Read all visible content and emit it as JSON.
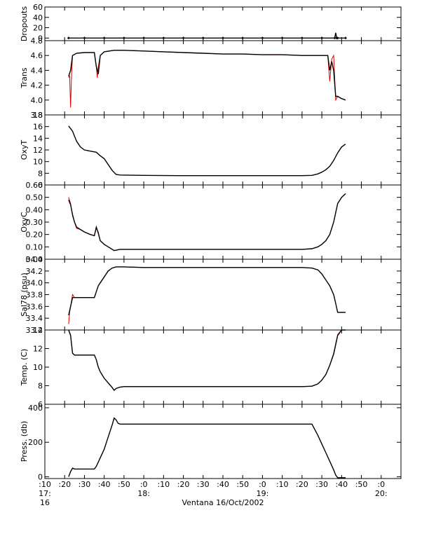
{
  "figure": {
    "xlabel": "Ventana 16/Oct/2002",
    "x_ticks": [
      {
        "label": ":10",
        "hour_label": "17:",
        "sub_label": "16"
      },
      {
        "label": ":20"
      },
      {
        "label": ":30"
      },
      {
        "label": ":40"
      },
      {
        "label": ":50"
      },
      {
        "label": ":0",
        "hour_label": "18:"
      },
      {
        "label": ":10"
      },
      {
        "label": ":20"
      },
      {
        "label": ":30"
      },
      {
        "label": ":40"
      },
      {
        "label": ":50"
      },
      {
        "label": ":0",
        "hour_label": "19:"
      },
      {
        "label": ":10"
      },
      {
        "label": ":20"
      },
      {
        "label": ":30"
      },
      {
        "label": ":40"
      },
      {
        "label": ":50"
      },
      {
        "label": ":0",
        "hour_label": "20:"
      }
    ]
  },
  "chart_data": [
    {
      "type": "line",
      "ylabel": "Dropouts",
      "ylim": [
        -5,
        60
      ],
      "yticks": [
        {
          "v": 60,
          "label": "60"
        },
        {
          "v": 40,
          "label": "40"
        },
        {
          "v": 20,
          "label": "20"
        },
        {
          "v": 0,
          "label": "0"
        }
      ],
      "series": [
        {
          "color": "#000000",
          "x": [
            22,
            30,
            40,
            50,
            60,
            70,
            80,
            90,
            100,
            110,
            120,
            130,
            140,
            150,
            156.5,
            157,
            157.5,
            158,
            162
          ],
          "y": [
            0,
            0,
            0,
            0,
            0,
            0,
            0,
            0,
            0,
            0,
            0,
            0,
            0,
            0,
            0,
            10,
            0,
            0,
            0
          ]
        }
      ]
    },
    {
      "type": "line",
      "ylabel": "Trans",
      "ylim": [
        3.8,
        4.8
      ],
      "yticks": [
        {
          "v": 4.8,
          "label": "4.8"
        },
        {
          "v": 4.6,
          "label": "4.6"
        },
        {
          "v": 4.4,
          "label": "4.4"
        },
        {
          "v": 4.2,
          "label": "4.2"
        },
        {
          "v": 4.0,
          "label": "4.0"
        },
        {
          "v": 3.8,
          "label": "3.8"
        }
      ],
      "series": [
        {
          "color": "#e00000",
          "x": [
            22,
            22.5,
            23,
            23.5,
            24,
            26,
            30,
            35,
            36,
            36.5,
            37,
            38,
            40,
            45,
            50,
            60,
            70,
            80,
            90,
            100,
            110,
            120,
            130,
            140,
            150,
            153,
            154,
            155,
            156,
            157,
            158,
            160,
            162
          ],
          "y": [
            4.3,
            4.33,
            3.9,
            4.35,
            4.6,
            4.63,
            4.64,
            4.64,
            4.45,
            4.3,
            4.45,
            4.6,
            4.65,
            4.67,
            4.67,
            4.66,
            4.65,
            4.64,
            4.63,
            4.62,
            4.62,
            4.61,
            4.61,
            4.6,
            4.6,
            4.6,
            4.25,
            4.55,
            4.6,
            4.0,
            4.05,
            4.02,
            4.0
          ]
        },
        {
          "color": "#000000",
          "x": [
            22,
            23,
            24,
            26,
            30,
            35,
            36,
            37,
            38,
            40,
            45,
            50,
            60,
            70,
            80,
            90,
            100,
            110,
            120,
            130,
            140,
            150,
            153,
            154,
            155,
            156,
            157,
            158,
            160,
            162
          ],
          "y": [
            4.32,
            4.4,
            4.6,
            4.63,
            4.64,
            4.64,
            4.45,
            4.35,
            4.6,
            4.65,
            4.67,
            4.67,
            4.66,
            4.65,
            4.64,
            4.63,
            4.62,
            4.62,
            4.61,
            4.61,
            4.6,
            4.6,
            4.6,
            4.4,
            4.52,
            4.4,
            4.05,
            4.05,
            4.02,
            4.0
          ]
        }
      ]
    },
    {
      "type": "line",
      "ylabel": "OxyT",
      "ylim": [
        6,
        18
      ],
      "yticks": [
        {
          "v": 18,
          "label": "18"
        },
        {
          "v": 16,
          "label": "16"
        },
        {
          "v": 14,
          "label": "14"
        },
        {
          "v": 12,
          "label": "12"
        },
        {
          "v": 10,
          "label": "10"
        },
        {
          "v": 8,
          "label": "8"
        },
        {
          "v": 6,
          "label": "6"
        }
      ],
      "series": [
        {
          "color": "#000000",
          "x": [
            22,
            24,
            26,
            28,
            30,
            33,
            36,
            38,
            40,
            42,
            44,
            46,
            48,
            60,
            80,
            100,
            120,
            140,
            145,
            148,
            150,
            152,
            154,
            156,
            158,
            160,
            162
          ],
          "y": [
            16.1,
            15.2,
            13.5,
            12.5,
            12.0,
            11.8,
            11.6,
            11.0,
            10.5,
            9.5,
            8.5,
            7.8,
            7.7,
            7.65,
            7.6,
            7.6,
            7.6,
            7.6,
            7.65,
            7.9,
            8.2,
            8.6,
            9.2,
            10.2,
            11.5,
            12.5,
            13.0
          ]
        }
      ]
    },
    {
      "type": "line",
      "ylabel": "OxyC",
      "ylim": [
        0.0,
        0.6
      ],
      "yticks": [
        {
          "v": 0.6,
          "label": "0.60"
        },
        {
          "v": 0.5,
          "label": "0.50"
        },
        {
          "v": 0.4,
          "label": "0.40"
        },
        {
          "v": 0.3,
          "label": "0.30"
        },
        {
          "v": 0.2,
          "label": "0.20"
        },
        {
          "v": 0.1,
          "label": "0.10"
        },
        {
          "v": 0.0,
          "label": "0.00"
        }
      ],
      "series": [
        {
          "color": "#e00000",
          "x": [
            22,
            23,
            24,
            25,
            26,
            28,
            30,
            33,
            35,
            36,
            37,
            38,
            40,
            42,
            45,
            48,
            60,
            80,
            100,
            120,
            140,
            145,
            148,
            150,
            152,
            154,
            156,
            158,
            160,
            162
          ],
          "y": [
            0.5,
            0.45,
            0.35,
            0.3,
            0.25,
            0.24,
            0.22,
            0.2,
            0.19,
            0.25,
            0.22,
            0.15,
            0.12,
            0.1,
            0.07,
            0.08,
            0.08,
            0.08,
            0.08,
            0.08,
            0.08,
            0.085,
            0.1,
            0.12,
            0.15,
            0.2,
            0.3,
            0.45,
            0.5,
            0.53
          ]
        },
        {
          "color": "#000000",
          "x": [
            22,
            23,
            24,
            25,
            26,
            28,
            30,
            33,
            35,
            36,
            37,
            38,
            40,
            42,
            45,
            48,
            60,
            80,
            100,
            120,
            140,
            145,
            148,
            150,
            152,
            154,
            156,
            158,
            160,
            162
          ],
          "y": [
            0.48,
            0.44,
            0.36,
            0.3,
            0.26,
            0.24,
            0.22,
            0.2,
            0.19,
            0.26,
            0.21,
            0.15,
            0.12,
            0.1,
            0.07,
            0.08,
            0.08,
            0.08,
            0.08,
            0.08,
            0.08,
            0.085,
            0.1,
            0.12,
            0.15,
            0.2,
            0.3,
            0.45,
            0.5,
            0.53
          ]
        }
      ]
    },
    {
      "type": "line",
      "ylabel": "Sal78 (psu)",
      "ylim": [
        33.2,
        34.4
      ],
      "yticks": [
        {
          "v": 34.4,
          "label": "34.4"
        },
        {
          "v": 34.2,
          "label": "34.2"
        },
        {
          "v": 34.0,
          "label": "34.0"
        },
        {
          "v": 33.8,
          "label": "33.8"
        },
        {
          "v": 33.6,
          "label": "33.6"
        },
        {
          "v": 33.4,
          "label": "33.4"
        },
        {
          "v": 33.2,
          "label": "33.2"
        }
      ],
      "series": [
        {
          "color": "#e00000",
          "x": [
            22,
            22.5,
            23,
            24,
            25,
            26,
            30,
            35,
            36,
            37,
            38,
            40,
            42,
            44,
            46,
            50,
            60,
            80,
            100,
            120,
            140,
            145,
            148,
            150,
            152,
            154,
            156,
            157,
            158,
            160,
            162
          ],
          "y": [
            33.3,
            33.5,
            33.6,
            33.8,
            33.75,
            33.75,
            33.75,
            33.75,
            33.85,
            33.95,
            34.0,
            34.1,
            34.2,
            34.25,
            34.27,
            34.27,
            34.26,
            34.26,
            34.26,
            34.26,
            34.26,
            34.25,
            34.22,
            34.15,
            34.05,
            33.95,
            33.8,
            33.65,
            33.5,
            33.5,
            33.5
          ]
        },
        {
          "color": "#000000",
          "x": [
            22,
            23,
            24,
            25,
            26,
            30,
            35,
            36,
            37,
            38,
            40,
            42,
            44,
            46,
            50,
            60,
            80,
            100,
            120,
            140,
            145,
            148,
            150,
            152,
            154,
            156,
            157,
            158,
            160,
            162
          ],
          "y": [
            33.45,
            33.6,
            33.75,
            33.75,
            33.75,
            33.75,
            33.75,
            33.85,
            33.95,
            34.0,
            34.1,
            34.2,
            34.25,
            34.27,
            34.27,
            34.26,
            34.26,
            34.26,
            34.26,
            34.26,
            34.25,
            34.22,
            34.15,
            34.05,
            33.95,
            33.8,
            33.65,
            33.5,
            33.5,
            33.5
          ]
        }
      ]
    },
    {
      "type": "line",
      "ylabel": "Temp. (C)",
      "ylim": [
        6,
        14
      ],
      "yticks": [
        {
          "v": 14,
          "label": "14"
        },
        {
          "v": 12,
          "label": "12"
        },
        {
          "v": 10,
          "label": "10"
        },
        {
          "v": 8,
          "label": "8"
        },
        {
          "v": 6,
          "label": "6"
        }
      ],
      "series": [
        {
          "color": "#e00000",
          "x": [
            22,
            23,
            24,
            25,
            26,
            30,
            35,
            36,
            37,
            38,
            40,
            42,
            44,
            45,
            46,
            48,
            50,
            60,
            80,
            100,
            120,
            140,
            145,
            148,
            150,
            152,
            154,
            156,
            158,
            160,
            162
          ],
          "y": [
            14.0,
            13.5,
            11.5,
            11.3,
            11.3,
            11.3,
            11.3,
            10.8,
            10.0,
            9.5,
            8.8,
            8.3,
            7.8,
            7.5,
            7.7,
            7.85,
            7.9,
            7.9,
            7.9,
            7.9,
            7.9,
            7.9,
            7.95,
            8.2,
            8.6,
            9.2,
            10.2,
            11.5,
            13.5,
            14.0,
            14.0
          ]
        },
        {
          "color": "#000000",
          "x": [
            22,
            23,
            24,
            25,
            26,
            30,
            35,
            36,
            37,
            38,
            40,
            42,
            44,
            45,
            46,
            48,
            50,
            60,
            80,
            100,
            120,
            140,
            145,
            148,
            150,
            152,
            154,
            156,
            158,
            160,
            162
          ],
          "y": [
            14.0,
            13.4,
            11.5,
            11.3,
            11.3,
            11.3,
            11.3,
            10.8,
            10.0,
            9.5,
            8.8,
            8.3,
            7.8,
            7.5,
            7.7,
            7.85,
            7.9,
            7.9,
            7.9,
            7.9,
            7.9,
            7.9,
            7.95,
            8.2,
            8.6,
            9.2,
            10.2,
            11.4,
            13.4,
            14.0,
            14.0
          ]
        }
      ]
    },
    {
      "type": "line",
      "ylabel": "Press. (db)",
      "ylim": [
        -10,
        420
      ],
      "yticks": [
        {
          "v": 400,
          "label": "400"
        },
        {
          "v": 200,
          "label": "200"
        },
        {
          "v": 0,
          "label": "0"
        }
      ],
      "series": [
        {
          "color": "#000000",
          "x": [
            22,
            23,
            24,
            25,
            26,
            30,
            35,
            36,
            38,
            40,
            42,
            44,
            45,
            46,
            47,
            48,
            50,
            60,
            80,
            100,
            120,
            140,
            145,
            148,
            150,
            152,
            154,
            156,
            157,
            158,
            160,
            162
          ],
          "y": [
            0,
            30,
            50,
            45,
            45,
            45,
            45,
            60,
            110,
            160,
            230,
            300,
            340,
            330,
            310,
            305,
            305,
            305,
            305,
            305,
            305,
            305,
            305,
            240,
            190,
            140,
            90,
            40,
            10,
            -5,
            -5,
            -5
          ]
        }
      ]
    }
  ]
}
